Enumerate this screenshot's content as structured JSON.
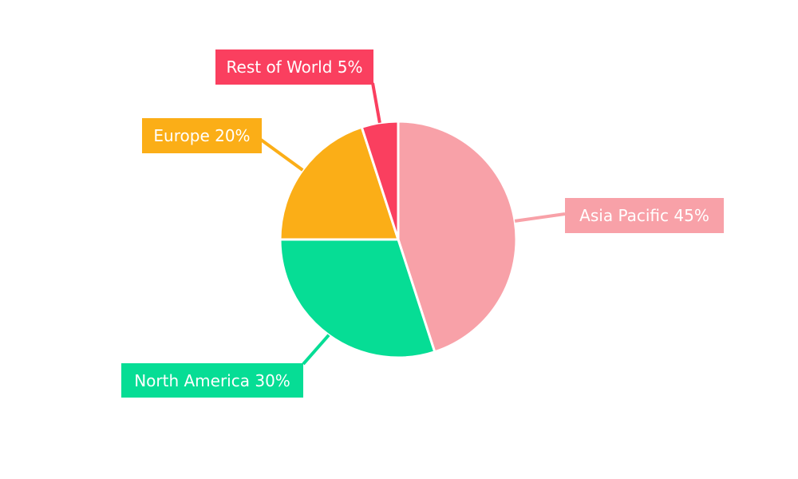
{
  "chart_data": {
    "type": "pie",
    "title": "",
    "categories": [
      "Asia Pacific",
      "North America",
      "Europe",
      "Rest of World"
    ],
    "values": [
      45,
      30,
      20,
      5
    ],
    "unit": "%",
    "colors": [
      "#F8A1A8",
      "#06DD95",
      "#FBAE17",
      "#FA3F5F"
    ],
    "callout_labels": [
      "Asia Pacific 45%",
      "North America 30%",
      "Europe 20%",
      "Rest of World 5%"
    ],
    "start_angle_deg": 0,
    "direction": "clockwise",
    "slice_border_color": "#FFFFFF",
    "label_text_color": "#FFFFFF",
    "background_color": "#FFFFFF",
    "legend_position": "none",
    "label_style": "callout boxes with leader lines"
  }
}
